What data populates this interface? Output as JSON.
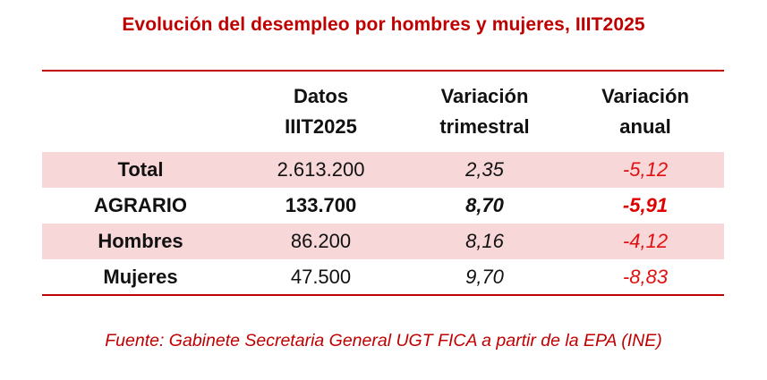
{
  "title": "Evolución del desempleo por hombres y mujeres, IIIT2025",
  "table": {
    "headers": [
      "",
      "Datos IIIT2025",
      "Variación trimestral",
      "Variación anual"
    ],
    "header_lines": [
      [
        "",
        ""
      ],
      [
        "Datos",
        "IIIT2025"
      ],
      [
        "Variación",
        "trimestral"
      ],
      [
        "Variación",
        "anual"
      ]
    ],
    "rows": [
      {
        "label": "Total",
        "datos": "2.613.200",
        "trimestral": "2,35",
        "anual": "-5,12"
      },
      {
        "label": "AGRARIO",
        "datos": "133.700",
        "trimestral": "8,70",
        "anual": "-5,91"
      },
      {
        "label": "Hombres",
        "datos": "86.200",
        "trimestral": "8,16",
        "anual": "-4,12"
      },
      {
        "label": "Mujeres",
        "datos": "47.500",
        "trimestral": "9,70",
        "anual": "-8,83"
      }
    ]
  },
  "source": "Fuente: Gabinete Secretaria General UGT FICA a partir de la EPA (INE)",
  "colors": {
    "accent": "#c00000",
    "row_band": "#f8d7d9",
    "negative": "#e01010"
  }
}
